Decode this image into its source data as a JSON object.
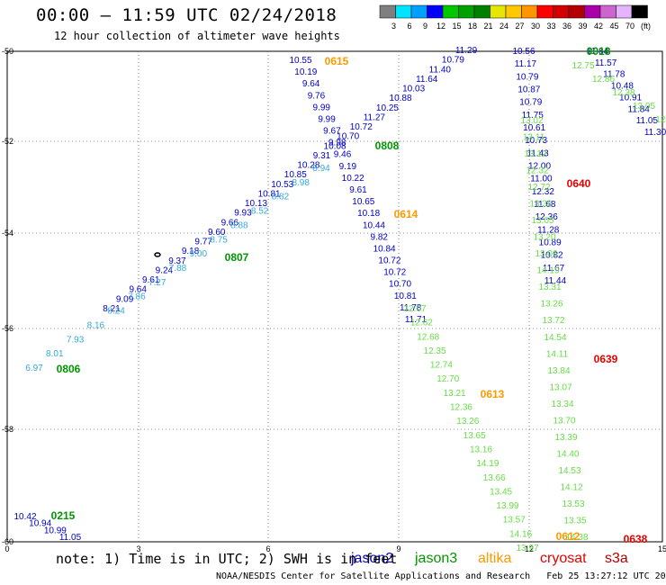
{
  "header": {
    "title": "00:00 – 11:59 UTC 02/24/2018",
    "subtitle": "12 hour collection of altimeter wave heights"
  },
  "legend": {
    "ticks": [
      "3",
      "6",
      "9",
      "12",
      "15",
      "18",
      "21",
      "24",
      "27",
      "30",
      "33",
      "36",
      "39",
      "42",
      "45",
      "70",
      "(ft)"
    ],
    "colors": [
      "#7f7f7f",
      "#00e5ff",
      "#00a0ff",
      "#0000ff",
      "#00c800",
      "#00a000",
      "#008000",
      "#e6e600",
      "#ffc800",
      "#ff9600",
      "#ff0000",
      "#d20000",
      "#b40000",
      "#aa00aa",
      "#cc66cc",
      "#e6b3ff",
      "#000000"
    ]
  },
  "axes": {
    "x_ticks": [
      "0",
      "3",
      "6",
      "9",
      "12",
      "15"
    ],
    "y_ticks": [
      "50",
      "52",
      "54",
      "56",
      "58",
      "60"
    ]
  },
  "satellites": [
    {
      "name": "jason2",
      "color": "#0000c8"
    },
    {
      "name": "jason3",
      "color": "#009600"
    },
    {
      "name": "altika",
      "color": "#ff9900"
    },
    {
      "name": "cryosat",
      "color": "#e60000"
    },
    {
      "name": "s3a",
      "color": "#b40000"
    }
  ],
  "footer": {
    "note": "note: 1) Time is in UTC; 2) SWH is in feet",
    "credit": "NOAA/NESDIS Center for Satellite Applications and Research   Feb 25 13:27:12 UTC 2018"
  },
  "time_labels": [
    {
      "text": "0615",
      "color": "#ff9900"
    },
    {
      "text": "0018",
      "color": "#009600"
    },
    {
      "text": "0808",
      "color": "#009600"
    },
    {
      "text": "0640",
      "color": "#e60000"
    },
    {
      "text": "0614",
      "color": "#ff9900"
    },
    {
      "text": "0807",
      "color": "#009600"
    },
    {
      "text": "0806",
      "color": "#009600"
    },
    {
      "text": "0639",
      "color": "#e60000"
    },
    {
      "text": "0613",
      "color": "#ff9900"
    },
    {
      "text": "0215",
      "color": "#009600"
    },
    {
      "text": "0612",
      "color": "#ff9900"
    },
    {
      "text": "0638",
      "color": "#e60000"
    }
  ],
  "tracks": {
    "jason2_desc": {
      "color": "#0000c8",
      "values": [
        "10.55",
        "10.19",
        "9.64",
        "9.76",
        "9.99",
        "9.99",
        "9.67",
        "9.98",
        "9.46",
        "9.19",
        "10.22",
        "9.61",
        "10.65",
        "10.18",
        "10.44",
        "9.82",
        "10.84",
        "10.72",
        "10.72",
        "10.70",
        "10.81",
        "11.78",
        "11.71"
      ]
    },
    "jason3_desc": {
      "color": "#66dd44",
      "values": [
        "12.07",
        "12.62",
        "12.68",
        "12.35",
        "12.74",
        "12.70",
        "13.21",
        "12.36",
        "13.26",
        "13.65",
        "13.16",
        "14.19",
        "13.66",
        "13.45",
        "13.99",
        "13.57",
        "14.16",
        "13.97"
      ]
    },
    "jason2_asc": {
      "color": "#0000c8",
      "values": [
        "11.29",
        "10.79",
        "11.40",
        "11.64",
        "10.03",
        "10.88",
        "10.25",
        "11.27",
        "10.72",
        "10.70",
        "10.08",
        "9.31",
        "10.28",
        "10.85",
        "10.53",
        "10.81",
        "10.13",
        "9.93",
        "9.66",
        "9.60",
        "9.77",
        "9.18",
        "9.37",
        "9.24",
        "9.61",
        "9.64",
        "9.09",
        "8.21"
      ]
    },
    "jason3_asc": {
      "color": "#33aadd",
      "values": [
        "8.94",
        "8.98",
        "8.82",
        "8.52",
        "8.88",
        "8.75",
        "9.00",
        "7.88",
        "7.27",
        "7.86",
        "8.24",
        "8.16",
        "7.93",
        "8.01",
        "6.97"
      ]
    },
    "jason2_mid": {
      "color": "#0000c8",
      "values": [
        "10.56",
        "11.17",
        "10.79",
        "10.87",
        "10.79",
        "11.75",
        "10.61",
        "10.73",
        "11.43",
        "12.00",
        "11.00",
        "12.32",
        "11.68",
        "12.36",
        "11.28",
        "10.89",
        "10.82",
        "11.67",
        "11.44"
      ]
    },
    "jason3_mid": {
      "color": "#66dd44",
      "values": [
        "13.02",
        "13.11",
        "13.12",
        "12.32",
        "12.72",
        "13.32",
        "13.05",
        "13.20",
        "13.06",
        "14.19",
        "13.31",
        "13.26",
        "13.72",
        "14.54",
        "14.11",
        "13.84",
        "13.07",
        "13.34",
        "13.70",
        "13.39",
        "14.40",
        "14.53",
        "14.12",
        "13.53",
        "13.35",
        "14.38"
      ]
    },
    "jason2_right": {
      "color": "#0000c8",
      "values": [
        "11.84",
        "11.57",
        "11.78",
        "10.48",
        "10.91",
        "11.84",
        "11.05",
        "11.30"
      ]
    },
    "jason3_right": {
      "color": "#66dd44",
      "values": [
        "12.75",
        "12.86",
        "12.38",
        "13.05",
        "12.6"
      ]
    },
    "jason2_bottom": {
      "color": "#0000c8",
      "values": [
        "10.42",
        "10.94",
        "10.99",
        "11.05"
      ]
    }
  }
}
